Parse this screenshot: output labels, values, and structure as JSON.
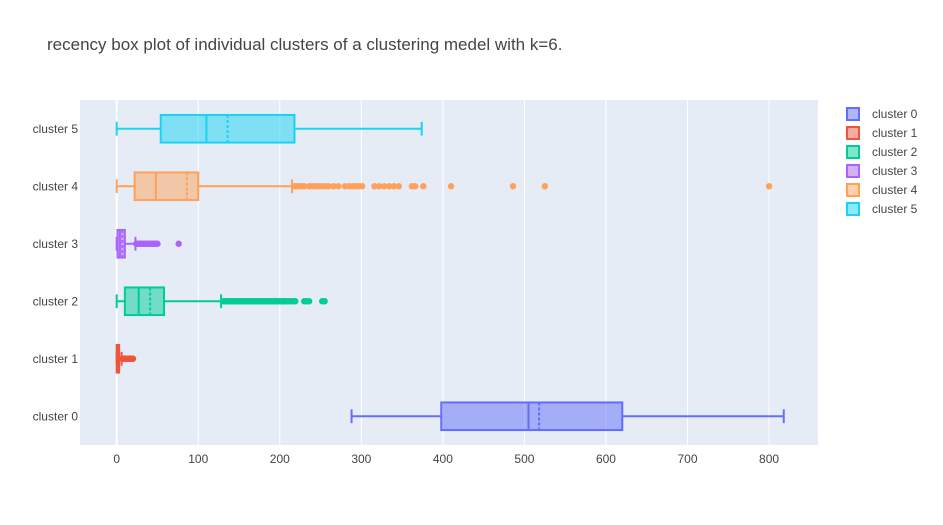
{
  "chart_data": {
    "type": "box",
    "orientation": "horizontal",
    "title": "recency box plot of individual clusters of a clustering medel with k=6.",
    "xlabel": "",
    "ylabel": "",
    "xlim": [
      -45,
      860
    ],
    "xticks": [
      0,
      100,
      200,
      300,
      400,
      500,
      600,
      700,
      800
    ],
    "grid": true,
    "legend_position": "top-right",
    "plot_bgcolor": "#e5ecf6",
    "categories": [
      "cluster 0",
      "cluster 1",
      "cluster 2",
      "cluster 3",
      "cluster 4",
      "cluster 5"
    ],
    "series": [
      {
        "name": "cluster 0",
        "color": "#636efa",
        "lower_fence": 288,
        "q1": 398,
        "median": 505,
        "mean": 518,
        "q3": 620,
        "upper_fence": 818,
        "outliers": []
      },
      {
        "name": "cluster 1",
        "color": "#ef553b",
        "lower_fence": 0,
        "q1": 0,
        "median": 1,
        "mean": 1.5,
        "q3": 3,
        "upper_fence": 6,
        "outliers": [
          7,
          8,
          9,
          10,
          11,
          12,
          13,
          14,
          15,
          16,
          17,
          18,
          20
        ]
      },
      {
        "name": "cluster 2",
        "color": "#00cc96",
        "lower_fence": 0,
        "q1": 10,
        "median": 27,
        "mean": 41,
        "q3": 58,
        "upper_fence": 128,
        "outliers": [
          131,
          133,
          135,
          137,
          139,
          141,
          143,
          145,
          147,
          149,
          151,
          153,
          155,
          157,
          159,
          161,
          163,
          165,
          167,
          169,
          171,
          173,
          175,
          177,
          179,
          181,
          183,
          185,
          187,
          189,
          191,
          193,
          195,
          197,
          199,
          201,
          203,
          205,
          207,
          210,
          213,
          216,
          219,
          230,
          233,
          236,
          252,
          255
        ]
      },
      {
        "name": "cluster 3",
        "color": "#ab63fa",
        "lower_fence": 0,
        "q1": 1,
        "median": 4,
        "mean": 7,
        "q3": 10,
        "upper_fence": 23,
        "outliers": [
          24,
          26,
          28,
          30,
          32,
          34,
          36,
          38,
          40,
          42,
          44,
          46,
          48,
          50,
          76
        ]
      },
      {
        "name": "cluster 4",
        "color": "#ffa15a",
        "lower_fence": 0,
        "q1": 22,
        "median": 48,
        "mean": 86,
        "q3": 100,
        "upper_fence": 215,
        "outliers": [
          218,
          221,
          224,
          227,
          230,
          236,
          240,
          244,
          248,
          252,
          256,
          260,
          266,
          272,
          280,
          285,
          289,
          293,
          297,
          301,
          316,
          322,
          328,
          334,
          340,
          346,
          362,
          366,
          376,
          410,
          486,
          525,
          800
        ]
      },
      {
        "name": "cluster 5",
        "color": "#19d3f3",
        "lower_fence": 0,
        "q1": 54,
        "median": 110,
        "mean": 136,
        "q3": 218,
        "upper_fence": 374,
        "outliers": []
      }
    ]
  }
}
